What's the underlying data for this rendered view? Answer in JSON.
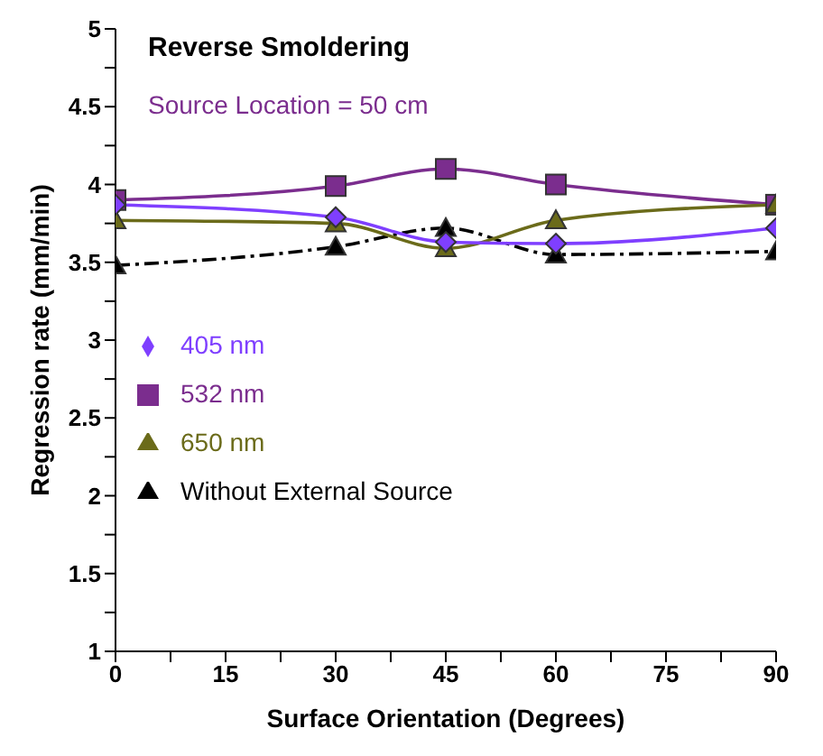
{
  "chart_data": {
    "type": "line",
    "title": "Reverse Smoldering",
    "annotations": [
      "Source Location = 50 cm"
    ],
    "xlabel": "Surface Orientation (Degrees)",
    "ylabel": "Regression rate (mm/min)",
    "x": [
      0,
      30,
      45,
      60,
      90
    ],
    "series": [
      {
        "name": "Without External Source",
        "color": "#000000",
        "marker": "triangle",
        "line_style": "dashed",
        "values": [
          3.48,
          3.6,
          3.72,
          3.55,
          3.57
        ]
      },
      {
        "name": "532 nm",
        "color": "#7b2d8e",
        "marker": "square",
        "values": [
          3.9,
          3.99,
          4.1,
          4.0,
          3.87
        ]
      },
      {
        "name": "650 nm",
        "color": "#6b6b1a",
        "marker": "triangle",
        "values": [
          3.77,
          3.75,
          3.59,
          3.77,
          3.87
        ]
      },
      {
        "name": "405 nm",
        "color": "#7f3fff",
        "marker": "diamond",
        "values": [
          3.87,
          3.79,
          3.63,
          3.62,
          3.72
        ]
      }
    ],
    "xlim": [
      0,
      90
    ],
    "xticks": [
      0,
      {
        "value": 7.5,
        "label": null
      },
      15,
      {
        "value": 22.5,
        "label": null
      },
      30,
      {
        "value": 37.5,
        "label": null
      },
      45,
      {
        "value": 52.5,
        "label": null
      },
      60,
      {
        "value": 67.5,
        "label": null
      },
      75,
      {
        "value": 82.5,
        "label": null
      },
      90
    ],
    "ylim": [
      1,
      5
    ],
    "yticks": [
      1,
      {
        "value": 1.25,
        "label": null
      },
      1.5,
      {
        "value": 1.75,
        "label": null
      },
      2,
      {
        "value": 2.25,
        "label": null
      },
      2.5,
      {
        "value": 2.75,
        "label": null
      },
      3,
      {
        "value": 3.25,
        "label": null
      },
      3.5,
      {
        "value": 3.75,
        "label": null
      },
      4,
      {
        "value": 4.25,
        "label": null
      },
      4.5,
      {
        "value": 4.75,
        "label": null
      },
      5
    ],
    "grid": false,
    "legend": "left"
  }
}
